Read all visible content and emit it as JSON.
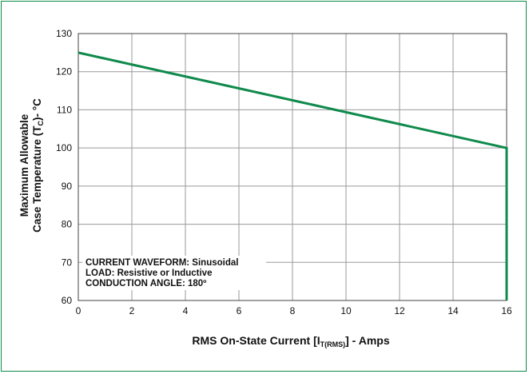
{
  "colors": {
    "frame": "#0b8a4a",
    "line": "#0f8a4c",
    "grid": "#9a9a9a",
    "axis": "#444444"
  },
  "chart_data": {
    "type": "line",
    "title": "",
    "xlabel": {
      "prefix": "RMS On-State Current [I",
      "sub": "T(RMS)",
      "suffix": "] - Amps"
    },
    "ylabel": {
      "line1": "Maximum Allowable",
      "line2_prefix": "Case Temperature (T",
      "line2_sub": "C",
      "line2_suffix": ")- °C"
    },
    "xlim": [
      0,
      16
    ],
    "ylim": [
      60,
      130
    ],
    "xticks": [
      0,
      2,
      4,
      6,
      8,
      10,
      12,
      14,
      16
    ],
    "yticks": [
      60,
      70,
      80,
      90,
      100,
      110,
      120,
      130
    ],
    "grid": true,
    "series": [
      {
        "x": [
          0,
          16,
          16
        ],
        "y": [
          125,
          100,
          60
        ]
      }
    ],
    "annotations": [
      "CURRENT WAVEFORM: Sinusoidal",
      "LOAD: Resistive or Inductive",
      "CONDUCTION ANGLE: 180º"
    ]
  }
}
